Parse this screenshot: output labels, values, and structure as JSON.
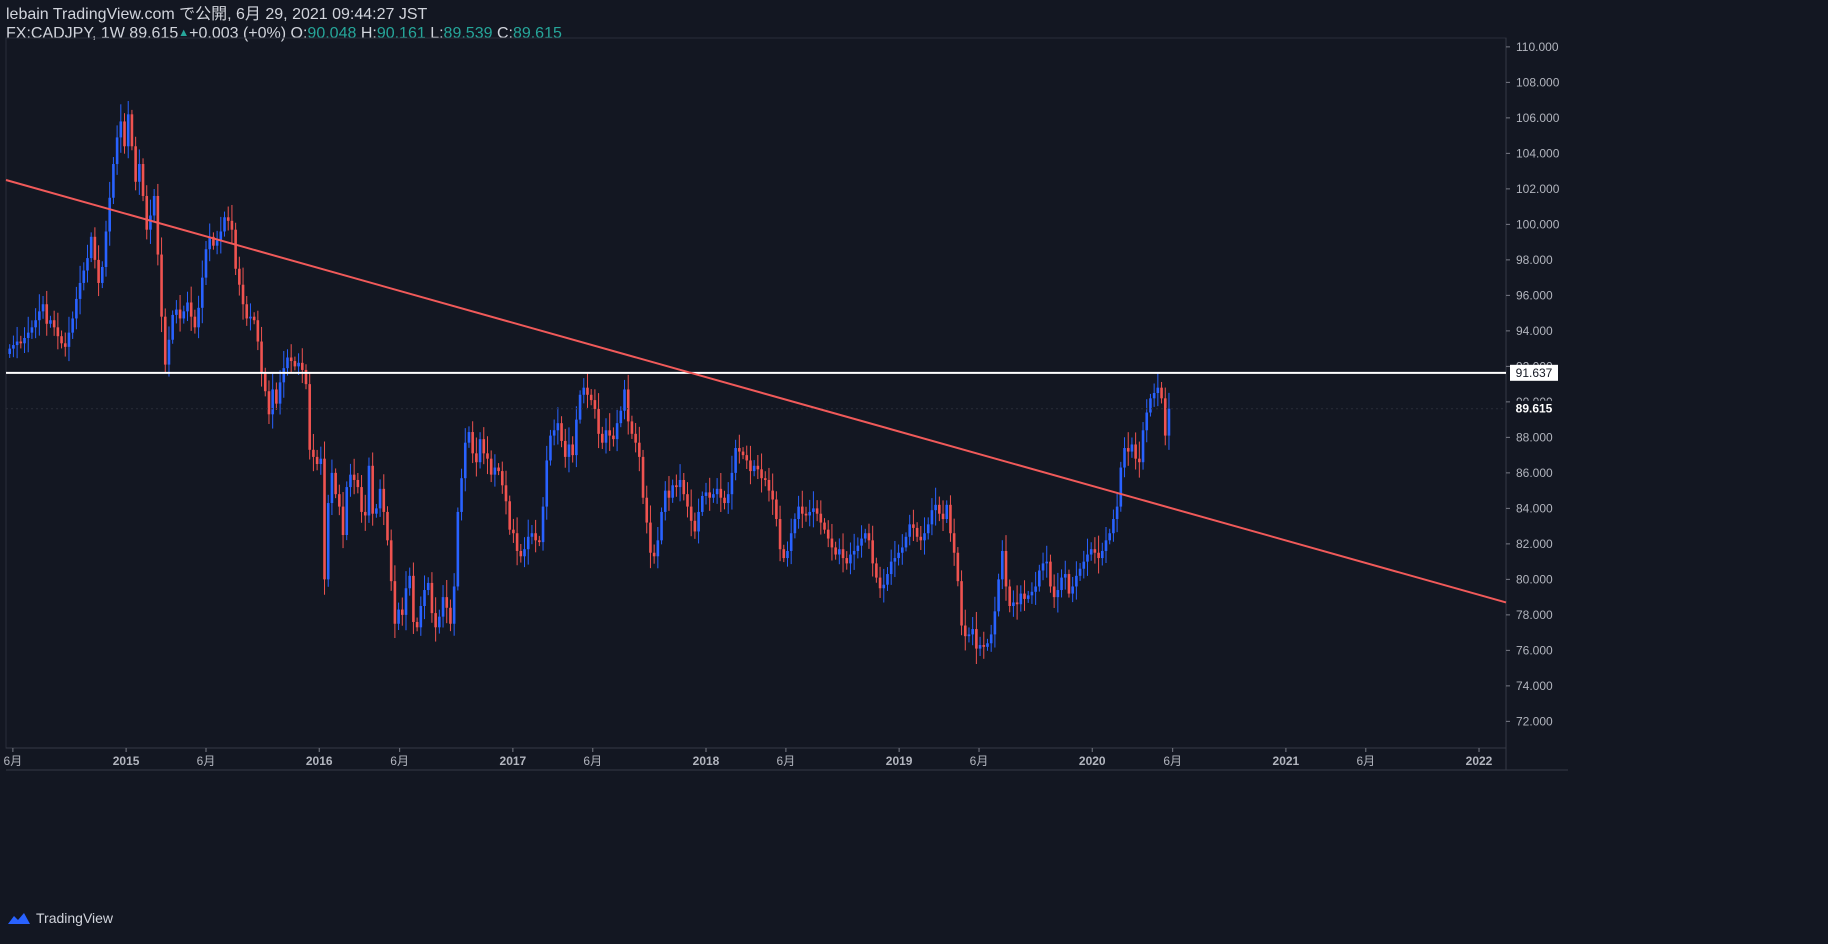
{
  "header": {
    "publish_line": "lebain TradingView.com で公開, 6月 29, 2021 09:44:27 JST",
    "symbol_line": "FX:CADJPY, 1W 89.615",
    "change": "+0.003 (+0%)",
    "o_label": "O:",
    "o_value": "90.048",
    "h_label": "H:",
    "h_value": "90.161",
    "l_label": "L:",
    "l_value": "89.539",
    "c_label": "C:",
    "c_value": "89.615"
  },
  "footer": {
    "brand": "TradingView"
  },
  "colors": {
    "background": "#131722",
    "up": "#2962ff",
    "down": "#ef5350",
    "trendline": "#f15a5a",
    "hline": "#ffffff"
  },
  "chart_data": {
    "type": "candlestick",
    "symbol": "FX:CADJPY",
    "interval": "1W",
    "ylim": [
      70.5,
      110.5
    ],
    "y_ticks": [
      72,
      74,
      76,
      78,
      80,
      82,
      84,
      86,
      88,
      90,
      92,
      94,
      96,
      98,
      100,
      102,
      104,
      106,
      108,
      110
    ],
    "y_tick_labels": [
      "72.000",
      "74.000",
      "76.000",
      "78.000",
      "80.000",
      "82.000",
      "84.000",
      "86.000",
      "88.000",
      "90.000",
      "92.000",
      "94.000",
      "96.000",
      "98.000",
      "100.000",
      "102.000",
      "104.000",
      "106.000",
      "108.000",
      "110.000"
    ],
    "x_range": [
      "2014-05-19",
      "2022-02-21"
    ],
    "x_ticks": [
      {
        "label": "6月",
        "date": "2014-06-01"
      },
      {
        "label": "2015",
        "date": "2015-01-01"
      },
      {
        "label": "6月",
        "date": "2015-06-01"
      },
      {
        "label": "2016",
        "date": "2016-01-01"
      },
      {
        "label": "6月",
        "date": "2016-06-01"
      },
      {
        "label": "2017",
        "date": "2017-01-01"
      },
      {
        "label": "6月",
        "date": "2017-06-01"
      },
      {
        "label": "2018",
        "date": "2018-01-01"
      },
      {
        "label": "6月",
        "date": "2018-06-01"
      },
      {
        "label": "2019",
        "date": "2019-01-01"
      },
      {
        "label": "6月",
        "date": "2019-06-01"
      },
      {
        "label": "2020",
        "date": "2020-01-01"
      },
      {
        "label": "6月",
        "date": "2020-06-01"
      },
      {
        "label": "2021",
        "date": "2021-01-01"
      },
      {
        "label": "6月",
        "date": "2021-06-01"
      },
      {
        "label": "2022",
        "date": "2022-01-01"
      }
    ],
    "start_date": "2014-05-26",
    "closes": [
      93.0,
      93.2,
      93.4,
      93.3,
      93.6,
      93.9,
      94.2,
      94.6,
      95.1,
      95.5,
      94.4,
      94.6,
      94.2,
      93.7,
      93.3,
      93.1,
      93.9,
      94.7,
      95.8,
      96.7,
      97.4,
      98.1,
      99.3,
      98.0,
      96.7,
      97.6,
      99.6,
      101.5,
      103.4,
      104.9,
      105.8,
      104.4,
      106.2,
      104.4,
      102.4,
      103.4,
      101.6,
      99.7,
      100.5,
      101.6,
      98.3,
      94.8,
      92.1,
      93.5,
      94.9,
      95.2,
      94.7,
      95.1,
      95.6,
      94.8,
      94.2,
      95.3,
      97.0,
      98.6,
      99.3,
      98.8,
      99.1,
      99.6,
      100.4,
      100.2,
      99.7,
      97.5,
      96.6,
      95.5,
      94.7,
      94.8,
      94.6,
      93.4,
      91.6,
      90.6,
      89.3,
      90.7,
      89.9,
      91.1,
      91.9,
      92.5,
      92.3,
      92.0,
      92.2,
      91.8,
      91.0,
      87.3,
      86.9,
      86.5,
      86.8,
      80.0,
      84.3,
      86.0,
      84.8,
      84.1,
      82.5,
      85.2,
      85.9,
      85.6,
      85.2,
      83.8,
      83.6,
      86.4,
      83.7,
      84.0,
      85.1,
      83.8,
      82.2,
      79.9,
      77.5,
      78.3,
      78.0,
      79.5,
      80.2,
      77.6,
      77.3,
      78.5,
      79.4,
      79.8,
      78.1,
      77.3,
      77.9,
      79.0,
      78.4,
      77.5,
      79.6,
      83.8,
      85.7,
      87.7,
      88.3,
      87.1,
      86.6,
      87.9,
      87.1,
      86.8,
      85.9,
      86.3,
      86.1,
      85.3,
      84.4,
      82.8,
      82.6,
      81.6,
      81.3,
      81.7,
      82.4,
      82.6,
      82.2,
      82.1,
      84.1,
      86.7,
      88.1,
      88.4,
      88.8,
      87.8,
      86.9,
      87.6,
      87.0,
      89.0,
      90.4,
      90.8,
      90.4,
      90.1,
      89.6,
      88.2,
      87.7,
      88.4,
      88.1,
      87.9,
      88.8,
      89.5,
      90.7,
      88.9,
      88.2,
      87.7,
      86.9,
      84.6,
      83.2,
      81.5,
      81.3,
      82.2,
      83.8,
      85.0,
      84.6,
      85.3,
      85.2,
      85.6,
      84.8,
      84.1,
      83.3,
      82.7,
      83.8,
      84.7,
      84.9,
      84.6,
      84.8,
      85.1,
      84.6,
      84.3,
      84.8,
      86.0,
      87.4,
      87.2,
      87.0,
      86.7,
      86.1,
      86.4,
      86.2,
      85.7,
      85.6,
      85.0,
      84.5,
      83.4,
      81.7,
      81.2,
      81.6,
      82.6,
      83.4,
      84.1,
      83.7,
      83.6,
      83.8,
      84.0,
      83.7,
      83.2,
      82.8,
      82.3,
      81.8,
      81.4,
      81.7,
      81.2,
      80.9,
      81.4,
      81.6,
      81.9,
      82.3,
      82.6,
      82.2,
      80.9,
      80.1,
      79.5,
      79.7,
      80.3,
      81.0,
      81.2,
      81.5,
      81.8,
      82.4,
      83.1,
      82.9,
      82.4,
      82.2,
      82.6,
      83.1,
      83.9,
      84.2,
      83.7,
      83.4,
      84.2,
      82.6,
      81.5,
      79.9,
      77.4,
      76.8,
      76.9,
      77.2,
      76.1,
      76.3,
      76.2,
      76.4,
      76.9,
      78.2,
      80.0,
      81.6,
      79.6,
      78.5,
      78.7,
      78.6,
      79.2,
      78.9,
      79.1,
      79.3,
      79.6,
      80.5,
      80.9,
      81.0,
      79.6,
      79.0,
      79.4,
      80.1,
      80.3,
      79.2,
      79.6,
      80.2,
      80.6,
      81.0,
      81.4,
      81.7,
      81.5,
      81.2,
      81.6,
      82.2,
      82.6,
      83.4,
      84.1,
      86.3,
      87.4,
      87.2,
      87.6,
      86.8,
      86.6,
      88.4,
      89.4,
      90.2,
      90.5,
      90.8,
      90.2,
      88.1,
      89.615
    ],
    "trendline": [
      {
        "date": "2014-05-19",
        "value": 102.5
      },
      {
        "date": "2022-02-21",
        "value": 78.7
      }
    ],
    "horizontal_line": {
      "value": 91.637,
      "label": "91.637"
    },
    "last_price": {
      "value": 89.615,
      "label": "89.615"
    }
  }
}
